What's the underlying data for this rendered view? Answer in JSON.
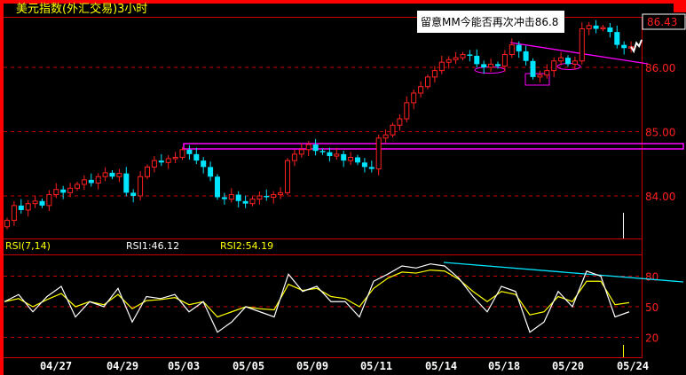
{
  "title": "美元指数(外汇交易)3小时",
  "annotation": "留意MM今能否再次冲击86.8",
  "current_price_label": "86.43",
  "colors": {
    "up": "#ff2020",
    "down": "#00e5ff",
    "doji": "#ffffff",
    "axis": "#cc0000",
    "grid": "#cc0000",
    "title": "#ffff00",
    "markup": "#ff00ff",
    "rsi1": "#ffffff",
    "rsi2": "#ffff00",
    "rsi_trend": "#00e5ff"
  },
  "rsi_header": {
    "name": "RSI(7,14)",
    "rsi1": "RSI1:46.12",
    "rsi2": "RSI2:54.19"
  },
  "chart_data": [
    {
      "type": "candlestick",
      "title": "美元指数(外汇交易)3小时",
      "y_ticks": [
        "86.00",
        "85.00",
        "84.00"
      ],
      "y_tick_values": [
        86,
        85,
        84
      ],
      "ylim": [
        83.33,
        86.77
      ],
      "x_ticks": [
        "04/27",
        "04/29",
        "05/03",
        "05/05",
        "05/09",
        "05/11",
        "05/14",
        "05/18",
        "05/20",
        "05/24"
      ],
      "grid": "horizontal-dashed",
      "closes": [
        83.62,
        83.85,
        83.78,
        83.88,
        83.92,
        83.85,
        84.02,
        84.1,
        84.05,
        84.12,
        84.18,
        84.25,
        84.2,
        84.3,
        84.36,
        84.3,
        84.35,
        84.05,
        84.0,
        84.3,
        84.45,
        84.55,
        84.52,
        84.58,
        84.6,
        84.72,
        84.65,
        84.55,
        84.45,
        84.3,
        83.98,
        83.95,
        84.02,
        83.92,
        83.88,
        83.95,
        84.0,
        83.98,
        84.02,
        84.05,
        84.55,
        84.65,
        84.72,
        84.8,
        84.7,
        84.68,
        84.62,
        84.65,
        84.55,
        84.6,
        84.52,
        84.45,
        84.42,
        84.9,
        84.95,
        85.1,
        85.2,
        85.45,
        85.6,
        85.7,
        85.85,
        85.95,
        86.08,
        86.12,
        86.15,
        86.2,
        86.18,
        86.05,
        86.0,
        86.05,
        86.02,
        86.2,
        86.35,
        86.25,
        86.1,
        85.85,
        85.88,
        85.95,
        86.1,
        86.15,
        86.05,
        86.1,
        86.6,
        86.65,
        86.6,
        86.62,
        86.55,
        86.35,
        86.3,
        86.32
      ],
      "projection": [
        86.32,
        86.25,
        86.38,
        86.33,
        86.43
      ],
      "resistance_band": [
        84.78,
        84.86
      ]
    },
    {
      "type": "line",
      "title": "RSI(7,14)",
      "y_ticks": [
        "80",
        "50",
        "20"
      ],
      "y_tick_values": [
        80,
        50,
        20
      ],
      "ylim": [
        0,
        100
      ],
      "series": [
        {
          "name": "RSI1",
          "values": [
            55,
            62,
            45,
            60,
            70,
            40,
            55,
            50,
            68,
            35,
            60,
            58,
            62,
            45,
            55,
            25,
            35,
            50,
            45,
            40,
            82,
            65,
            70,
            55,
            55,
            40,
            75,
            82,
            90,
            88,
            92,
            90,
            78,
            60,
            45,
            70,
            65,
            25,
            35,
            65,
            50,
            85,
            80,
            40,
            45
          ]
        },
        {
          "name": "RSI2",
          "values": [
            55,
            58,
            50,
            57,
            63,
            50,
            55,
            52,
            62,
            48,
            56,
            57,
            59,
            52,
            55,
            40,
            45,
            50,
            48,
            47,
            72,
            66,
            68,
            60,
            58,
            50,
            68,
            78,
            84,
            83,
            86,
            85,
            77,
            65,
            55,
            65,
            62,
            42,
            45,
            60,
            55,
            75,
            75,
            52,
            54
          ]
        }
      ]
    }
  ]
}
